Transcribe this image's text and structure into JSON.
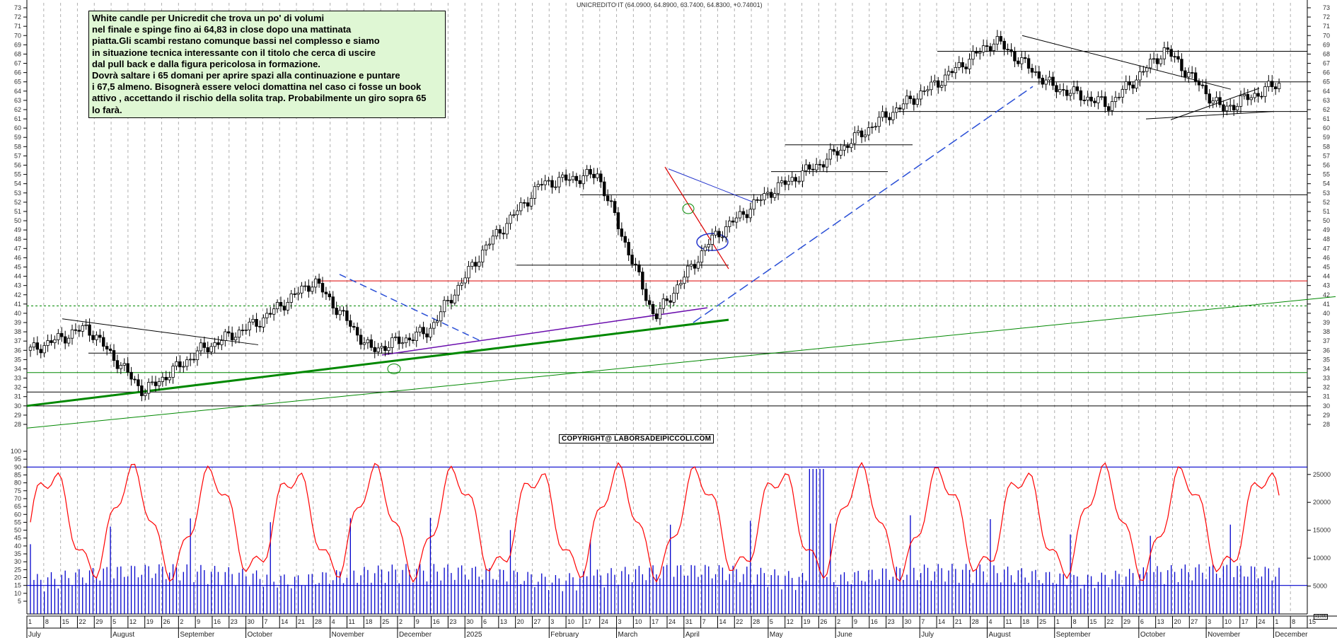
{
  "title": "UNICREDITO IT (64.0900, 64.8900, 63.7400, 64.8300, +0.74001)",
  "note": "White candle per Unicredit che trova un po' di volumi\nnel finale e spinge fino ai 64,83 in close dopo una mattinata\npiatta.Gli scambi restano comunque bassi nel complesso e siamo\nin situazione tecnica interessante con il titolo che cerca di uscire\ndal pull back e dalla figura pericolosa in formazione.\nDovrà saltare i 65 domani per aprire spazi alla continuazione e puntare\ni 67,5 almeno. Bisognerà essere veloci domattina nel caso ci fosse un book\nattivo , accettando il rischio della solita trap. Probabilmente un giro sopra 65\nlo farà.",
  "copyright": "COPYRIGHT@ LABORSADEIPICCOLI.COM",
  "volume_unit": "x1000",
  "colors": {
    "price_candle": "#000000",
    "oscillator": "#ff0000",
    "volume": "#0000cc",
    "trend_green": "#008800",
    "trend_purple": "#6a0dad",
    "trend_blue_dashed": "#2a4fd6",
    "resistance_red": "#dd0000",
    "note_bg": "#dff7d4",
    "grid": "#b0b0b0"
  },
  "chart_data": [
    {
      "type": "candlestick",
      "title": "UNICREDITO IT (64.0900, 64.8900, 63.7400, 64.8300, +0.74001)",
      "last_bar": {
        "open": 64.09,
        "high": 64.89,
        "low": 63.74,
        "close": 64.83,
        "change": 0.74001
      },
      "ylim": [
        27,
        74
      ],
      "y_ticks": [
        28,
        29,
        30,
        31,
        32,
        33,
        34,
        35,
        36,
        37,
        38,
        39,
        40,
        41,
        42,
        43,
        44,
        45,
        46,
        47,
        48,
        49,
        50,
        51,
        52,
        53,
        54,
        55,
        56,
        57,
        58,
        59,
        60,
        61,
        62,
        63,
        64,
        65,
        66,
        67,
        68,
        69,
        70,
        71,
        72,
        73
      ],
      "x_dates": [
        "1",
        "8",
        "15",
        "22",
        "29",
        "5",
        "12",
        "19",
        "26",
        "2",
        "9",
        "16",
        "23",
        "30",
        "7",
        "14",
        "21",
        "28",
        "4",
        "11",
        "18",
        "25",
        "2",
        "9",
        "16",
        "23",
        "30",
        "6",
        "13",
        "20",
        "27",
        "3",
        "10",
        "17",
        "24",
        "3",
        "10",
        "17",
        "24",
        "31",
        "7",
        "14",
        "22",
        "28",
        "5",
        "12",
        "19",
        "26",
        "2",
        "9",
        "16",
        "23",
        "30",
        "7",
        "14",
        "21",
        "28",
        "4",
        "11",
        "18",
        "25",
        "1",
        "8",
        "15",
        "22",
        "29",
        "6",
        "13",
        "20",
        "27",
        "3",
        "10",
        "17",
        "24",
        "1",
        "8",
        "15"
      ],
      "x_months": [
        "July",
        "August",
        "September",
        "October",
        "November",
        "December",
        "2025",
        "February",
        "March",
        "April",
        "May",
        "June",
        "July",
        "August",
        "September",
        "October",
        "November",
        "December"
      ],
      "approx_close_path": [
        {
          "t": "Jul 2024",
          "v": 36
        },
        {
          "t": "late Jul 2024",
          "v": 38.5
        },
        {
          "t": "early Aug 2024",
          "v": 31.5
        },
        {
          "t": "late Aug 2024",
          "v": 36
        },
        {
          "t": "Oct 2024",
          "v": 39
        },
        {
          "t": "early Nov 2024",
          "v": 43.5
        },
        {
          "t": "early Dec 2024",
          "v": 36
        },
        {
          "t": "late Dec 2024",
          "v": 38
        },
        {
          "t": "Feb 2025",
          "v": 47
        },
        {
          "t": "early Mar 2025",
          "v": 54
        },
        {
          "t": "late Mar 2025",
          "v": 55
        },
        {
          "t": "early Apr 2025",
          "v": 39.5
        },
        {
          "t": "mid Apr 2025",
          "v": 48
        },
        {
          "t": "early May 2025",
          "v": 53
        },
        {
          "t": "Jun 2025",
          "v": 56.5
        },
        {
          "t": "mid Jul 2025",
          "v": 61
        },
        {
          "t": "late Jul 2025",
          "v": 65
        },
        {
          "t": "mid Aug 2025",
          "v": 69.5
        },
        {
          "t": "Sep 2025",
          "v": 64.5
        },
        {
          "t": "early Oct 2025",
          "v": 62.5
        },
        {
          "t": "mid Nov 2025",
          "v": 68.5
        },
        {
          "t": "late Nov 2025",
          "v": 62
        },
        {
          "t": "end Nov 2025",
          "v": 64.83
        }
      ],
      "horizontal_levels": [
        68.3,
        65.0,
        61.8,
        58.2,
        55.3,
        52.8,
        45.2,
        43.5,
        40.8,
        35.7,
        33.6,
        31.5,
        30.0
      ],
      "annotations": [
        "rising green support trendline",
        "purple trendline",
        "blue dashed trendline",
        "red resistance 43.5",
        "dotted green 40.8",
        "descending black trendline Aug-Oct 2025",
        "green circle markers",
        "blue ellipse April 2025"
      ]
    },
    {
      "type": "line+bar",
      "title": "Oscillator and Volume",
      "oscillator_ylim": [
        0,
        100
      ],
      "oscillator_y_ticks": [
        5,
        10,
        15,
        20,
        25,
        30,
        35,
        40,
        45,
        50,
        55,
        60,
        65,
        70,
        75,
        80,
        85,
        90,
        95,
        100
      ],
      "oscillator_levels": [
        90,
        15
      ],
      "oscillator_last": 70,
      "volume_y_ticks": [
        5000,
        10000,
        15000,
        20000,
        25000
      ],
      "volume_unit": "x1000",
      "volume_typical": 5000,
      "volume_peak": 27000
    }
  ]
}
